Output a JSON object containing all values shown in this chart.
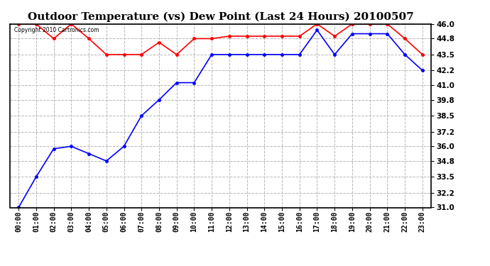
{
  "title": "Outdoor Temperature (vs) Dew Point (Last 24 Hours) 20100507",
  "copyright_text": "Copyright 2010 Cartronics.com",
  "x_labels": [
    "00:00",
    "01:00",
    "02:00",
    "03:00",
    "04:00",
    "05:00",
    "06:00",
    "07:00",
    "08:00",
    "09:00",
    "10:00",
    "11:00",
    "12:00",
    "13:00",
    "14:00",
    "15:00",
    "16:00",
    "17:00",
    "18:00",
    "19:00",
    "20:00",
    "21:00",
    "22:00",
    "23:00"
  ],
  "temp_data": [
    31.0,
    33.5,
    35.8,
    36.0,
    35.4,
    34.8,
    36.0,
    38.5,
    39.8,
    41.2,
    41.2,
    43.5,
    43.5,
    43.5,
    43.5,
    43.5,
    43.5,
    45.5,
    43.5,
    45.2,
    45.2,
    45.2,
    43.5,
    42.2
  ],
  "dew_data": [
    46.0,
    46.0,
    44.8,
    46.0,
    44.8,
    43.5,
    43.5,
    43.5,
    44.5,
    43.5,
    44.8,
    44.8,
    45.0,
    45.0,
    45.0,
    45.0,
    45.0,
    46.0,
    45.0,
    46.0,
    46.0,
    46.0,
    44.8,
    43.5
  ],
  "temp_color": "blue",
  "dew_color": "red",
  "y_min": 31.0,
  "y_max": 46.0,
  "y_ticks": [
    31.0,
    32.2,
    33.5,
    34.8,
    36.0,
    37.2,
    38.5,
    39.8,
    41.0,
    42.2,
    43.5,
    44.8,
    46.0
  ],
  "bg_color": "#ffffff",
  "grid_color": "#b0b0b0",
  "title_fontsize": 11,
  "marker": "o",
  "marker_size": 3,
  "line_width": 1.2
}
